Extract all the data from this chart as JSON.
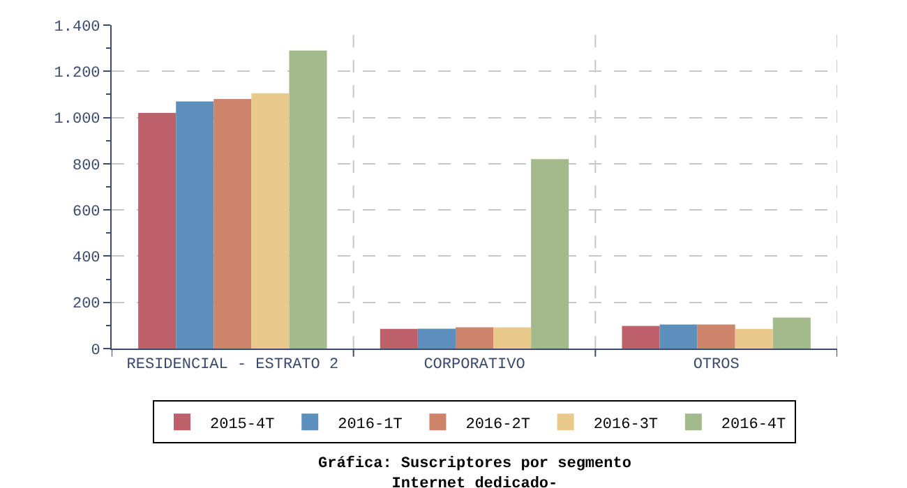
{
  "chart_data": {
    "type": "bar",
    "title": "Gráfica: Suscriptores por segmento\nInternet dedicado-",
    "categories": [
      "RESIDENCIAL - ESTRATO 2",
      "CORPORATIVO",
      "OTROS"
    ],
    "series": [
      {
        "name": "2015-4T",
        "color": "#bd6069",
        "values": [
          1020,
          85,
          98
        ]
      },
      {
        "name": "2016-1T",
        "color": "#5d8fbd",
        "values": [
          1070,
          86,
          104
        ]
      },
      {
        "name": "2016-2T",
        "color": "#cd846b",
        "values": [
          1080,
          92,
          104
        ]
      },
      {
        "name": "2016-3T",
        "color": "#e9c98b",
        "values": [
          1105,
          92,
          85
        ]
      },
      {
        "name": "2016-4T",
        "color": "#a3bb8c",
        "values": [
          1290,
          820,
          134
        ]
      }
    ],
    "ylim": [
      0,
      1400
    ],
    "yticks": [
      0,
      {
        "value": 100,
        "label": null
      },
      200,
      {
        "value": 300,
        "label": null
      },
      400,
      {
        "value": 500,
        "label": null
      },
      600,
      {
        "value": 700,
        "label": null
      },
      800,
      {
        "value": 900,
        "label": null
      },
      {
        "value": 1000,
        "label": "1.000"
      },
      {
        "value": 1100,
        "label": null
      },
      {
        "value": 1200,
        "label": "1.200"
      },
      {
        "value": 1300,
        "label": null
      },
      {
        "value": 1400,
        "label": "1.400"
      }
    ],
    "grid": true,
    "legend": "bottom"
  }
}
